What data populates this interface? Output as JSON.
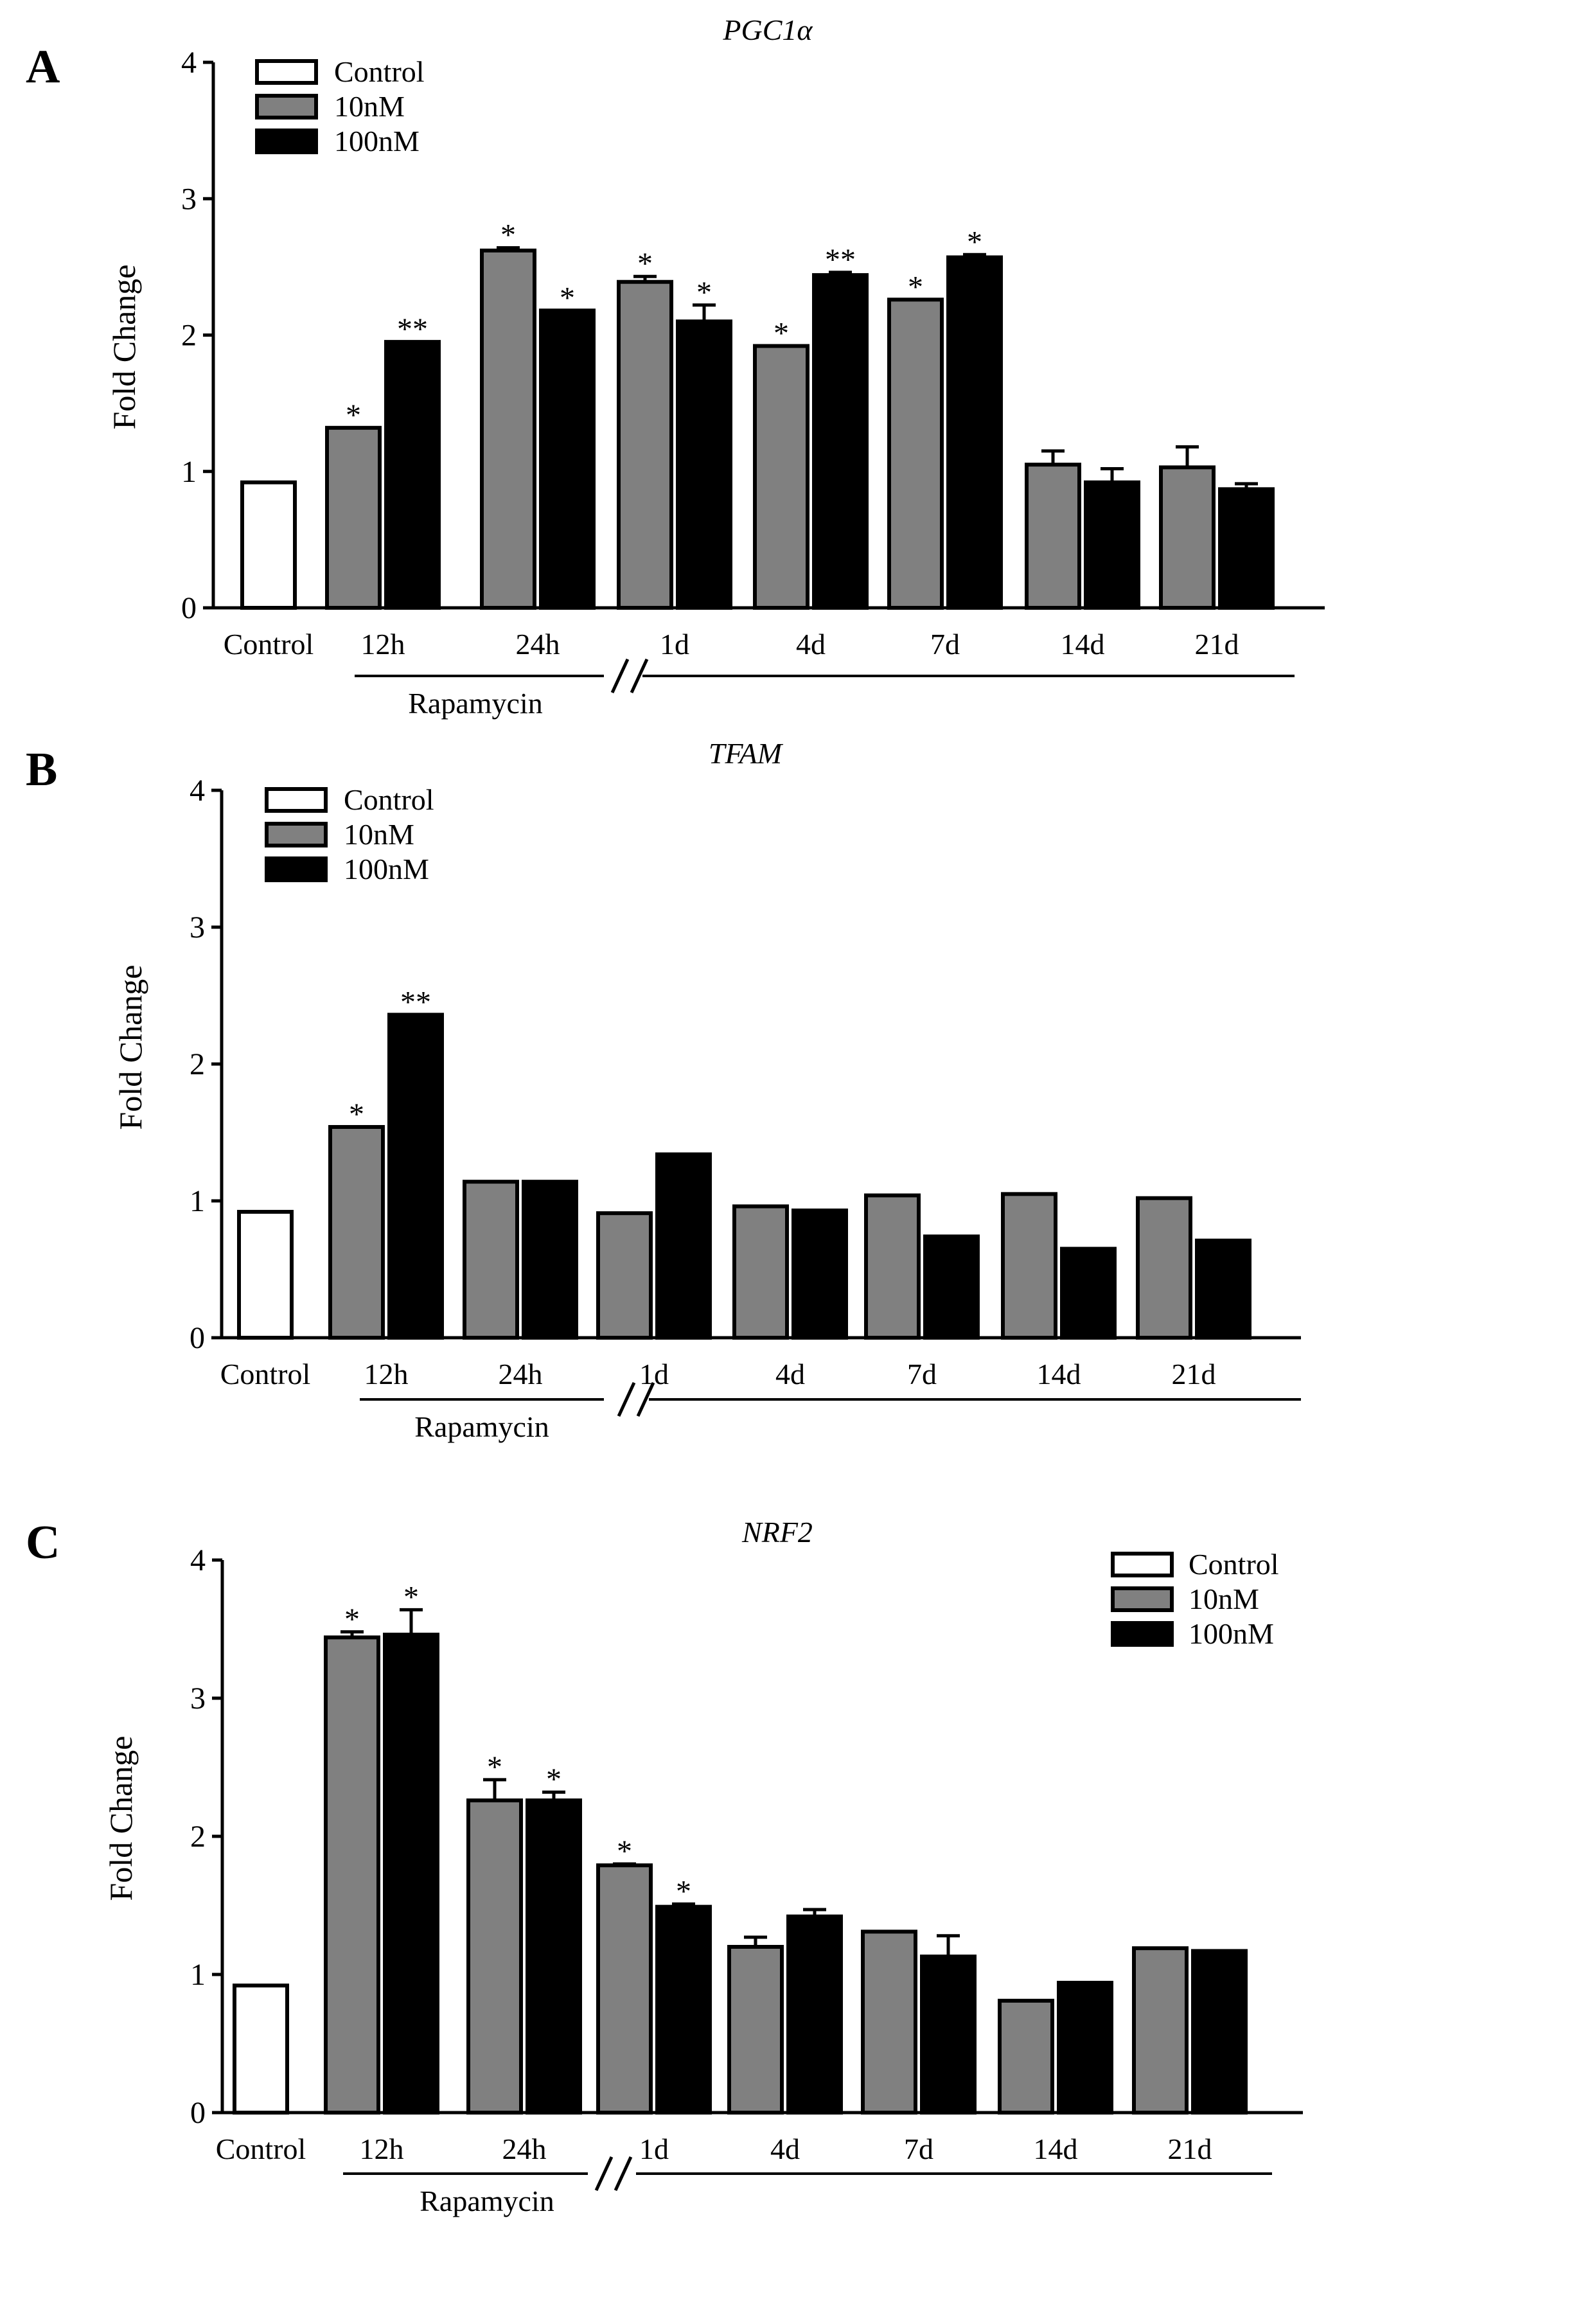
{
  "chart_data": [
    {
      "panel": "A",
      "type": "bar",
      "title": "PGC1α",
      "ylabel": "Fold Change",
      "ylim": [
        0,
        4
      ],
      "yticks": [
        "0",
        "1",
        "2",
        "3",
        "4"
      ],
      "categories": [
        "Control",
        "12h",
        "24h",
        "1d",
        "4d",
        "7d",
        "14d",
        "21d"
      ],
      "group_label": "Rapamycin",
      "legend": {
        "position": "top-left",
        "entries": [
          "Control",
          "10nM",
          "100nM"
        ]
      },
      "colors": {
        "Control": "#ffffff",
        "10nM": "#808080",
        "100nM": "#000000"
      },
      "series": [
        {
          "name": "Control",
          "values": [
            0.92,
            null,
            null,
            null,
            null,
            null,
            null,
            null
          ],
          "errors": [
            0,
            null,
            null,
            null,
            null,
            null,
            null,
            null
          ],
          "stars": [
            "",
            "",
            "",
            "",
            "",
            "",
            "",
            ""
          ]
        },
        {
          "name": "10nM",
          "values": [
            null,
            1.32,
            2.62,
            2.39,
            1.92,
            2.26,
            1.05,
            1.03
          ],
          "errors": [
            null,
            0,
            0.02,
            0.04,
            0,
            0,
            0.1,
            0.15
          ],
          "stars": [
            "",
            "*",
            "*",
            "*",
            "*",
            "*",
            "",
            ""
          ]
        },
        {
          "name": "100nM",
          "values": [
            null,
            1.95,
            2.18,
            2.1,
            2.44,
            2.57,
            0.92,
            0.87
          ],
          "errors": [
            null,
            0,
            0,
            0.12,
            0.02,
            0.02,
            0.1,
            0.04
          ],
          "stars": [
            "",
            "**",
            "*",
            "*",
            "**",
            "*",
            "",
            ""
          ]
        }
      ]
    },
    {
      "panel": "B",
      "type": "bar",
      "title": "TFAM",
      "ylabel": "Fold Change",
      "ylim": [
        0,
        4
      ],
      "yticks": [
        "0",
        "1",
        "2",
        "3",
        "4"
      ],
      "categories": [
        "Control",
        "12h",
        "24h",
        "1d",
        "4d",
        "7d",
        "14d",
        "21d"
      ],
      "group_label": "Rapamycin",
      "legend": {
        "position": "top-left",
        "entries": [
          "Control",
          "10nM",
          "100nM"
        ]
      },
      "colors": {
        "Control": "#ffffff",
        "10nM": "#808080",
        "100nM": "#000000"
      },
      "series": [
        {
          "name": "Control",
          "values": [
            0.92,
            null,
            null,
            null,
            null,
            null,
            null,
            null
          ],
          "errors": [
            0,
            null,
            null,
            null,
            null,
            null,
            null,
            null
          ],
          "stars": [
            "",
            "",
            "",
            "",
            "",
            "",
            "",
            ""
          ]
        },
        {
          "name": "10nM",
          "values": [
            null,
            1.54,
            1.14,
            0.91,
            0.96,
            1.04,
            1.05,
            1.02
          ],
          "errors": [
            null,
            0,
            0,
            0,
            0,
            0,
            0,
            0
          ],
          "stars": [
            "",
            "*",
            "",
            "",
            "",
            "",
            "",
            ""
          ]
        },
        {
          "name": "100nM",
          "values": [
            null,
            2.36,
            1.14,
            1.34,
            0.93,
            0.74,
            0.65,
            0.71
          ],
          "errors": [
            null,
            0,
            0,
            0,
            0,
            0,
            0,
            0
          ],
          "stars": [
            "",
            "**",
            "",
            "",
            "",
            "",
            "",
            ""
          ]
        }
      ]
    },
    {
      "panel": "C",
      "type": "bar",
      "title": "NRF2",
      "ylabel": "Fold Change",
      "ylim": [
        0,
        4
      ],
      "yticks": [
        "0",
        "1",
        "2",
        "3",
        "4"
      ],
      "categories": [
        "Control",
        "12h",
        "24h",
        "1d",
        "4d",
        "7d",
        "14d",
        "21d"
      ],
      "group_label": "Rapamycin",
      "legend": {
        "position": "top-right",
        "entries": [
          "Control",
          "10nM",
          "100nM"
        ]
      },
      "colors": {
        "Control": "#ffffff",
        "10nM": "#808080",
        "100nM": "#000000"
      },
      "series": [
        {
          "name": "Control",
          "values": [
            0.92,
            null,
            null,
            null,
            null,
            null,
            null,
            null
          ],
          "errors": [
            0,
            null,
            null,
            null,
            null,
            null,
            null,
            null
          ],
          "stars": [
            "",
            "",
            "",
            "",
            "",
            "",
            "",
            ""
          ]
        },
        {
          "name": "10nM",
          "values": [
            null,
            3.44,
            2.26,
            1.79,
            1.2,
            1.31,
            0.81,
            1.19
          ],
          "errors": [
            null,
            0.04,
            0.15,
            0.01,
            0.07,
            0,
            0,
            0
          ],
          "stars": [
            "",
            "*",
            "*",
            "*",
            "",
            "",
            "",
            ""
          ]
        },
        {
          "name": "100nM",
          "values": [
            null,
            3.46,
            2.26,
            1.49,
            1.42,
            1.13,
            0.94,
            1.17
          ],
          "errors": [
            null,
            0.18,
            0.06,
            0.02,
            0.05,
            0.15,
            0,
            0
          ],
          "stars": [
            "",
            "*",
            "*",
            "*",
            "",
            "",
            "",
            ""
          ]
        }
      ]
    }
  ]
}
